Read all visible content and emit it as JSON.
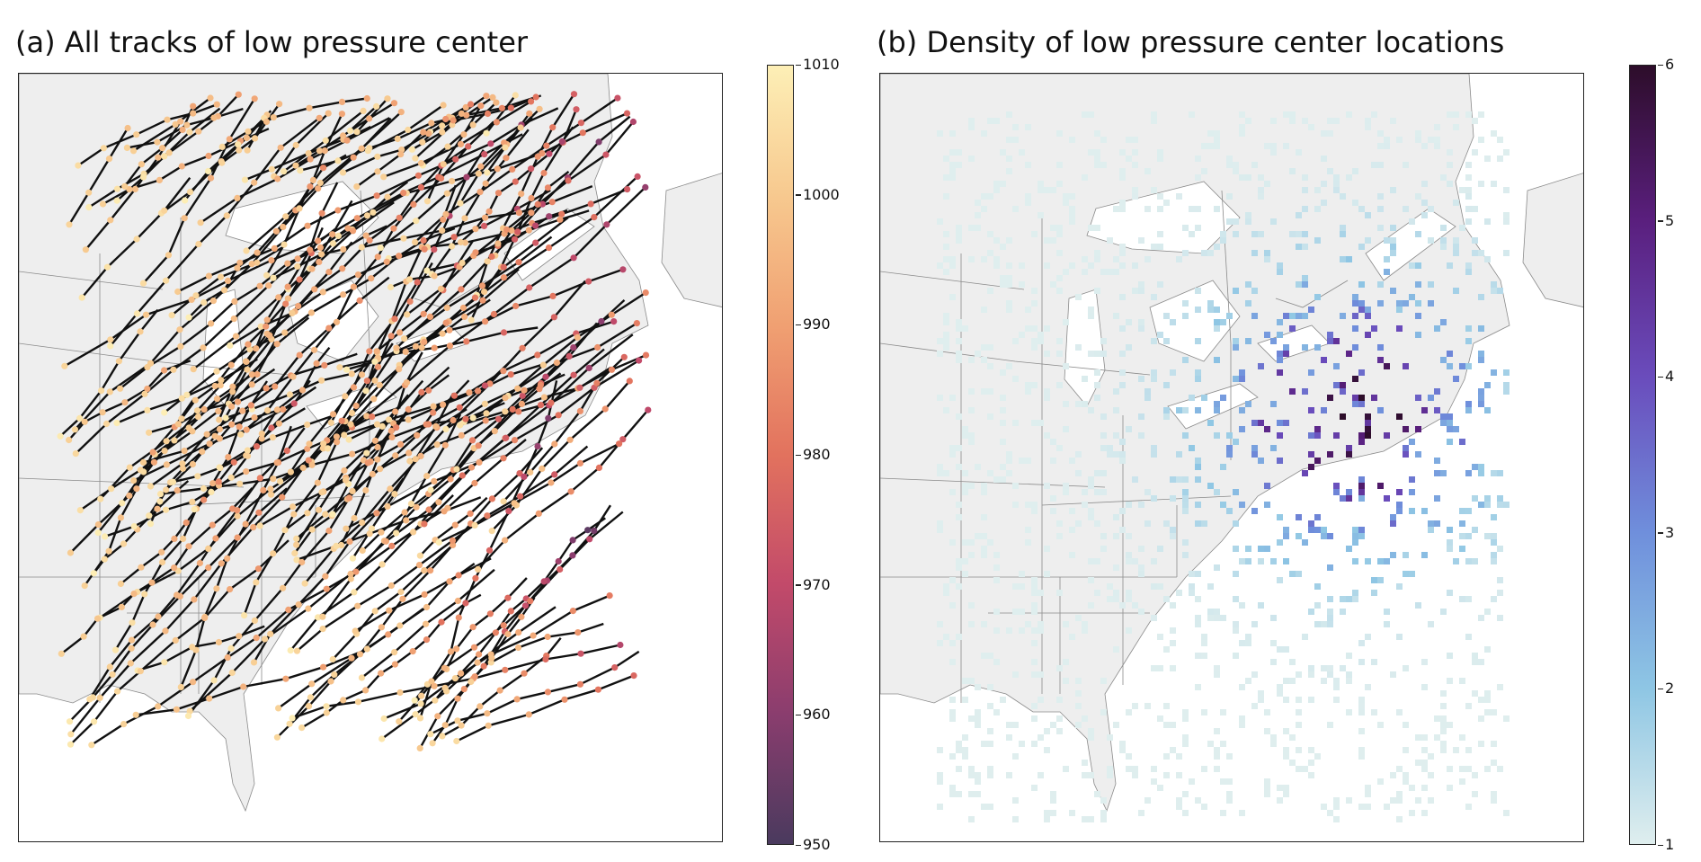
{
  "panels": [
    {
      "id": "a",
      "title": "(a) All tracks of low pressure center",
      "colorbar": {
        "ticks": [
          "1010",
          "1000",
          "990",
          "980",
          "970",
          "960",
          "950"
        ],
        "min": 950,
        "max": 1010,
        "colors": [
          "#4a3a5e",
          "#8a3d6e",
          "#c24a6a",
          "#e2725e",
          "#f0a072",
          "#f7c98f",
          "#fdefb6"
        ]
      }
    },
    {
      "id": "b",
      "title": "(b) Density of low pressure center locations",
      "colorbar": {
        "ticks": [
          "6",
          "5",
          "4",
          "3",
          "2",
          "1"
        ],
        "min": 1,
        "max": 6,
        "colors": [
          "#dfeeee",
          "#8ec6e4",
          "#6f8fdc",
          "#6a4cbc",
          "#5a1f7e",
          "#2d0d2a"
        ]
      }
    }
  ],
  "colors": {
    "land": "#eeeeee",
    "ocean": "#ffffff",
    "border": "#8a8a8a",
    "track_line": "#111111"
  }
}
